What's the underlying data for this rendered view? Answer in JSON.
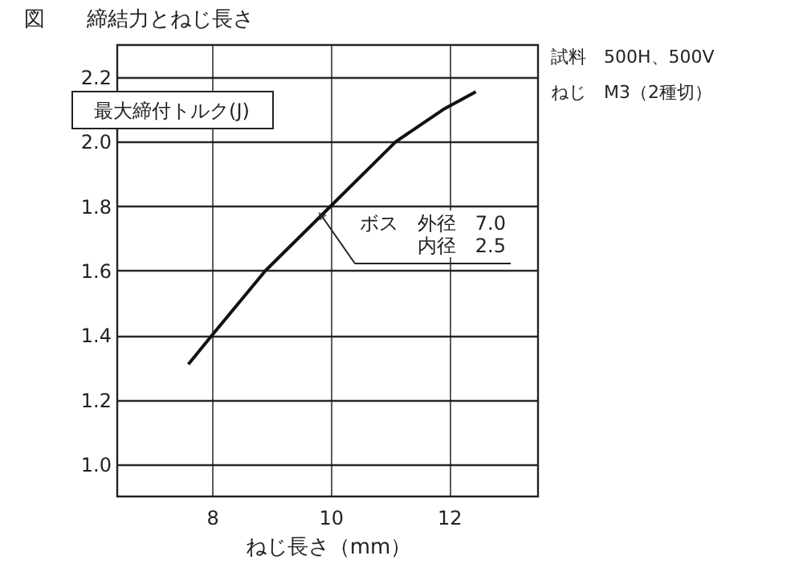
{
  "chart_data": {
    "type": "line",
    "title": "図　　締結力とねじ長さ",
    "xlabel": "ねじ長さ（mm）",
    "ylabel": "最大締付トルク(J)",
    "x": [
      7.6,
      8.0,
      8.9,
      10.0,
      11.1,
      11.9,
      12.45
    ],
    "series": [
      {
        "color": "#111111",
        "values": [
          1.31,
          1.4,
          1.6,
          1.8,
          2.0,
          2.1,
          2.155
        ]
      }
    ],
    "xlim": [
      6.4,
      13.5
    ],
    "ylim": [
      0.9,
      2.3
    ],
    "xticks": [
      8,
      10,
      12
    ],
    "yticks": [
      {
        "value": 1.0,
        "label": "1.0"
      },
      {
        "value": 1.2,
        "label": "1.2"
      },
      {
        "value": 1.4,
        "label": "1.4"
      },
      {
        "value": 1.6,
        "label": "1.6"
      },
      {
        "value": 1.8,
        "label": "1.8"
      },
      {
        "value": 2.0,
        "label": "2.0"
      },
      {
        "value": 2.2,
        "label": "2.2"
      }
    ],
    "grid": true,
    "marker": "none",
    "line_style": "solid",
    "annotations": [
      {
        "text": "ボス　外径　7.0\n内径　2.5",
        "x": 9.85,
        "y": 1.77
      },
      "試料　500H、500V",
      "ねじ　M3（2種切）"
    ]
  }
}
